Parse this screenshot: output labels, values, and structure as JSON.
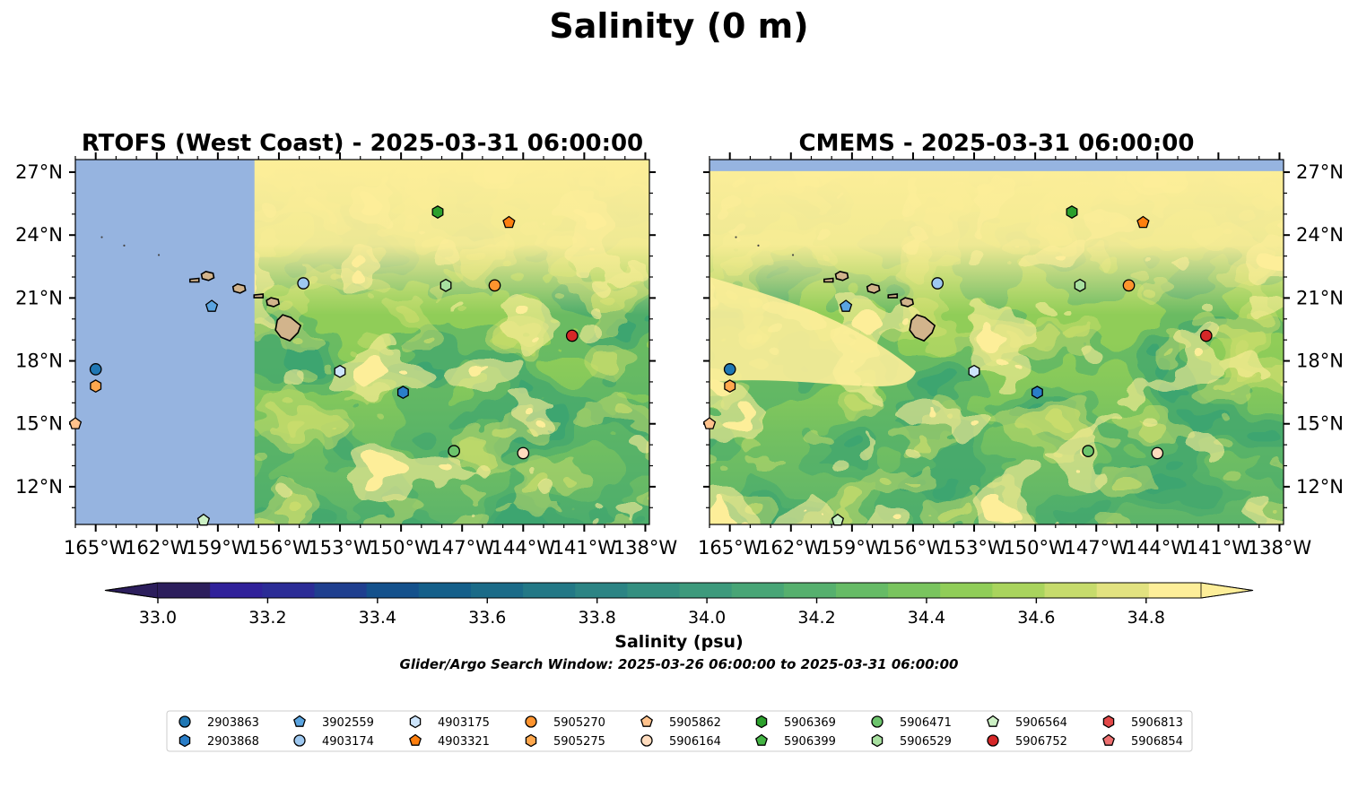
{
  "title": "Salinity (0 m)",
  "panels": [
    {
      "id": "rtofs",
      "title": "RTOFS (West Coast) - 2025-03-31 06:00:00",
      "lat_labels_side": "left"
    },
    {
      "id": "cmems",
      "title": "CMEMS - 2025-03-31 06:00:00",
      "lat_labels_side": "right"
    }
  ],
  "map_extent": {
    "lon": [
      -166.0,
      -137.8
    ],
    "lat": [
      10.2,
      27.6
    ]
  },
  "lon_ticks": [
    "165°W",
    "162°W",
    "159°W",
    "156°W",
    "153°W",
    "150°W",
    "147°W",
    "144°W",
    "141°W",
    "138°W"
  ],
  "lon_tick_values": [
    -165,
    -162,
    -159,
    -156,
    -153,
    -150,
    -147,
    -144,
    -141,
    -138
  ],
  "lat_ticks": [
    "27°N",
    "24°N",
    "21°N",
    "18°N",
    "15°N",
    "12°N"
  ],
  "lat_tick_values": [
    27,
    24,
    21,
    18,
    15,
    12
  ],
  "rtofs_domain_west_lon": -157.2,
  "cmems_domain_north_lat": 27.05,
  "colorbar": {
    "label": "Salinity (psu)",
    "min": 33.0,
    "max": 34.9,
    "step": 0.1,
    "extend": "both",
    "ticks": [
      "33.0",
      "33.2",
      "33.4",
      "33.6",
      "33.8",
      "34.0",
      "34.2",
      "34.4",
      "34.6",
      "34.8"
    ],
    "colors": [
      "#2c1e5c",
      "#30219a",
      "#2b2c96",
      "#1f3f8f",
      "#14518c",
      "#145f8a",
      "#1b6b88",
      "#237886",
      "#2c8484",
      "#348f80",
      "#3d9a7c",
      "#48a576",
      "#56b06e",
      "#66bb66",
      "#79c45e",
      "#90cd58",
      "#a9d45d",
      "#c6db6c",
      "#e2e280",
      "#fdee99"
    ],
    "under_color": "#2c1e5c",
    "over_color": "#fdee99"
  },
  "search_window": "Glider/Argo Search Window: 2025-03-26 06:00:00 to 2025-03-31 06:00:00",
  "land_color": "#d2b48c",
  "nodata_color": "#96b4e0",
  "floats": [
    {
      "id": "2903863",
      "marker": "circle",
      "color": "#1f77b4",
      "lon": -165.0,
      "lat": 17.6
    },
    {
      "id": "2903868",
      "marker": "hexagon",
      "color": "#2a7ec8",
      "lon": -149.9,
      "lat": 16.5
    },
    {
      "id": "3902559",
      "marker": "pentagon",
      "color": "#5aa4e0",
      "lon": -159.3,
      "lat": 20.6
    },
    {
      "id": "4903174",
      "marker": "circle",
      "color": "#9ec8f0",
      "lon": -154.8,
      "lat": 21.7
    },
    {
      "id": "4903175",
      "marker": "hexagon",
      "color": "#cce4fb",
      "lon": -153.0,
      "lat": 17.5
    },
    {
      "id": "4903321",
      "marker": "pentagon",
      "color": "#ff7f0e",
      "lon": -144.7,
      "lat": 24.6
    },
    {
      "id": "5905270",
      "marker": "circle",
      "color": "#ff942e",
      "lon": -145.4,
      "lat": 21.6
    },
    {
      "id": "5905275",
      "marker": "hexagon",
      "color": "#ffa84e",
      "lon": -165.0,
      "lat": 16.8
    },
    {
      "id": "5905862",
      "marker": "pentagon",
      "color": "#ffc28c",
      "lon": -166.0,
      "lat": 15.0
    },
    {
      "id": "5906164",
      "marker": "circle",
      "color": "#ffdcbe",
      "lon": -144.0,
      "lat": 13.6
    },
    {
      "id": "5906369",
      "marker": "hexagon",
      "color": "#2ca02c",
      "lon": -148.2,
      "lat": 25.1
    },
    {
      "id": "5906399",
      "marker": "pentagon",
      "color": "#45b545",
      "lon": null,
      "lat": null
    },
    {
      "id": "5906471",
      "marker": "circle",
      "color": "#6cc46c",
      "lon": -147.4,
      "lat": 13.7
    },
    {
      "id": "5906529",
      "marker": "hexagon",
      "color": "#a8e0a0",
      "lon": -147.8,
      "lat": 21.6
    },
    {
      "id": "5906564",
      "marker": "pentagon",
      "color": "#ccf0c4",
      "lon": -159.7,
      "lat": 10.4
    },
    {
      "id": "5906752",
      "marker": "circle",
      "color": "#d62728",
      "lon": -141.6,
      "lat": 19.2
    },
    {
      "id": "5906813",
      "marker": "hexagon",
      "color": "#e24848",
      "lon": null,
      "lat": null
    },
    {
      "id": "5906854",
      "marker": "pentagon",
      "color": "#ee7070",
      "lon": null,
      "lat": null
    }
  ],
  "islands": [
    {
      "name": "Hawaii",
      "lon": -155.55,
      "lat": 19.6,
      "kind": "big"
    },
    {
      "name": "Maui",
      "lon": -156.3,
      "lat": 20.8,
      "kind": "med"
    },
    {
      "name": "Molokai",
      "lon": -157.0,
      "lat": 21.1,
      "kind": "small"
    },
    {
      "name": "Oahu",
      "lon": -157.95,
      "lat": 21.45,
      "kind": "med"
    },
    {
      "name": "Kauai",
      "lon": -159.5,
      "lat": 22.05,
      "kind": "med"
    },
    {
      "name": "Niihau",
      "lon": -160.15,
      "lat": 21.85,
      "kind": "small"
    }
  ]
}
